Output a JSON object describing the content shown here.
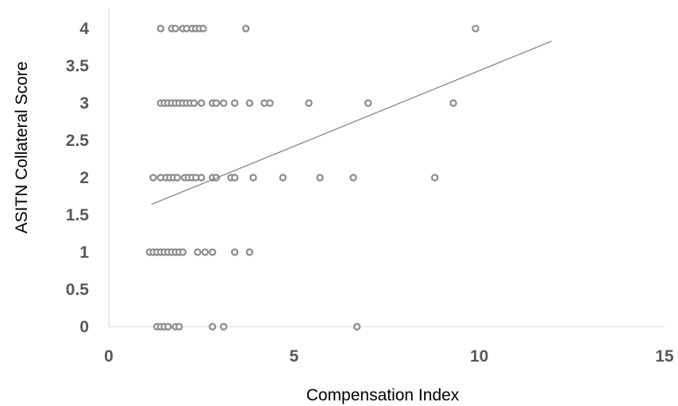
{
  "chart_data": {
    "type": "scatter",
    "title": "",
    "xlabel": "Compensation Index",
    "ylabel": "ASITN Collateral Score",
    "xlim": [
      0,
      15
    ],
    "ylim": [
      0,
      4
    ],
    "xticks": [
      "0",
      "5",
      "10",
      "15"
    ],
    "yticks": [
      "0",
      "0.5",
      "1",
      "1.5",
      "2",
      "2.5",
      "3",
      "3.5",
      "4"
    ],
    "grid": false,
    "legend": "none",
    "marker_color": "#8c8c8c",
    "trendline_color": "#7f7f7f",
    "series": [
      {
        "points": [
          [
            1.4,
            4
          ],
          [
            1.7,
            4
          ],
          [
            1.8,
            4
          ],
          [
            2.0,
            4
          ],
          [
            2.1,
            4
          ],
          [
            2.25,
            4
          ],
          [
            2.35,
            4
          ],
          [
            2.45,
            4
          ],
          [
            2.55,
            4
          ],
          [
            3.7,
            4
          ],
          [
            9.9,
            4
          ],
          [
            1.4,
            3
          ],
          [
            1.5,
            3
          ],
          [
            1.6,
            3
          ],
          [
            1.7,
            3
          ],
          [
            1.8,
            3
          ],
          [
            1.9,
            3
          ],
          [
            2.0,
            3
          ],
          [
            2.1,
            3
          ],
          [
            2.2,
            3
          ],
          [
            2.3,
            3
          ],
          [
            2.5,
            3
          ],
          [
            2.8,
            3
          ],
          [
            2.9,
            3
          ],
          [
            3.1,
            3
          ],
          [
            3.4,
            3
          ],
          [
            3.8,
            3
          ],
          [
            4.2,
            3
          ],
          [
            4.35,
            3
          ],
          [
            5.4,
            3
          ],
          [
            7.0,
            3
          ],
          [
            9.3,
            3
          ],
          [
            1.2,
            2
          ],
          [
            1.4,
            2
          ],
          [
            1.55,
            2
          ],
          [
            1.65,
            2
          ],
          [
            1.75,
            2
          ],
          [
            1.85,
            2
          ],
          [
            2.05,
            2
          ],
          [
            2.15,
            2
          ],
          [
            2.25,
            2
          ],
          [
            2.35,
            2
          ],
          [
            2.5,
            2
          ],
          [
            2.8,
            2
          ],
          [
            2.9,
            2
          ],
          [
            3.3,
            2
          ],
          [
            3.4,
            2
          ],
          [
            3.9,
            2
          ],
          [
            4.7,
            2
          ],
          [
            5.7,
            2
          ],
          [
            6.6,
            2
          ],
          [
            8.8,
            2
          ],
          [
            1.1,
            1
          ],
          [
            1.2,
            1
          ],
          [
            1.3,
            1
          ],
          [
            1.4,
            1
          ],
          [
            1.5,
            1
          ],
          [
            1.6,
            1
          ],
          [
            1.7,
            1
          ],
          [
            1.8,
            1
          ],
          [
            1.9,
            1
          ],
          [
            2.0,
            1
          ],
          [
            2.4,
            1
          ],
          [
            2.6,
            1
          ],
          [
            2.8,
            1
          ],
          [
            3.4,
            1
          ],
          [
            3.8,
            1
          ],
          [
            1.3,
            0
          ],
          [
            1.4,
            0
          ],
          [
            1.5,
            0
          ],
          [
            1.6,
            0
          ],
          [
            1.8,
            0
          ],
          [
            1.9,
            0
          ],
          [
            2.8,
            0
          ],
          [
            3.1,
            0
          ],
          [
            6.7,
            0
          ]
        ]
      }
    ],
    "trendline": {
      "x": [
        1.15,
        11.95
      ],
      "y": [
        1.64,
        3.83
      ]
    }
  }
}
